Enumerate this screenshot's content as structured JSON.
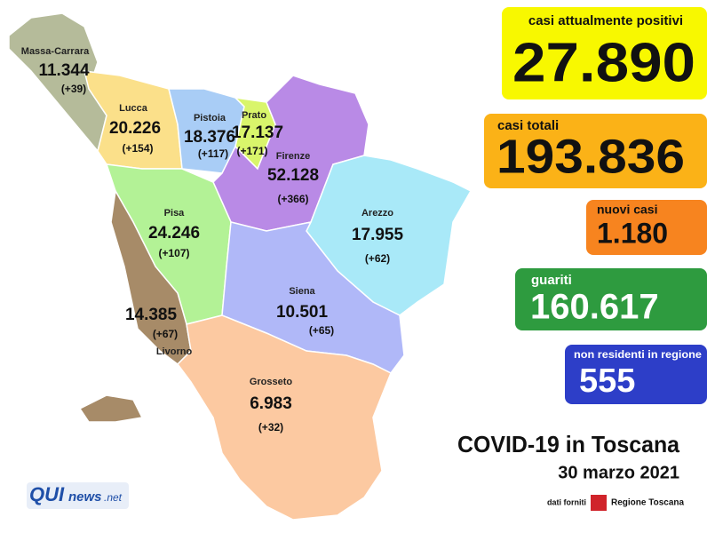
{
  "provinces": [
    {
      "name": "Massa-Carrara",
      "cases": "11.344",
      "delta": "(+39)"
    },
    {
      "name": "Lucca",
      "cases": "20.226",
      "delta": "(+154)"
    },
    {
      "name": "Pistoia",
      "cases": "18.376",
      "delta": "(+117)"
    },
    {
      "name": "Prato",
      "cases": "17.137",
      "delta": "(+171)"
    },
    {
      "name": "Firenze",
      "cases": "52.128",
      "delta": "(+366)"
    },
    {
      "name": "Pisa",
      "cases": "24.246",
      "delta": "(+107)"
    },
    {
      "name": "Arezzo",
      "cases": "17.955",
      "delta": "(+62)"
    },
    {
      "name": "Livorno",
      "cases": "14.385",
      "delta": "(+67)"
    },
    {
      "name": "Siena",
      "cases": "10.501",
      "delta": "(+65)"
    },
    {
      "name": "Grosseto",
      "cases": "6.983",
      "delta": "(+32)"
    }
  ],
  "stats": [
    {
      "label": "casi attualmente positivi",
      "value": "27.890"
    },
    {
      "label": "casi totali",
      "value": "193.836"
    },
    {
      "label": "nuovi casi",
      "value": "1.180"
    },
    {
      "label": "guariti",
      "value": "160.617"
    },
    {
      "label": "non residenti in regione",
      "value": "555"
    }
  ],
  "title": "COVID-19 in Toscana",
  "date": "30 marzo 2021",
  "source": {
    "label": "dati forniti",
    "name": "Regione Toscana"
  },
  "logo": {
    "parts": [
      "QUI",
      "news",
      ".net"
    ]
  }
}
